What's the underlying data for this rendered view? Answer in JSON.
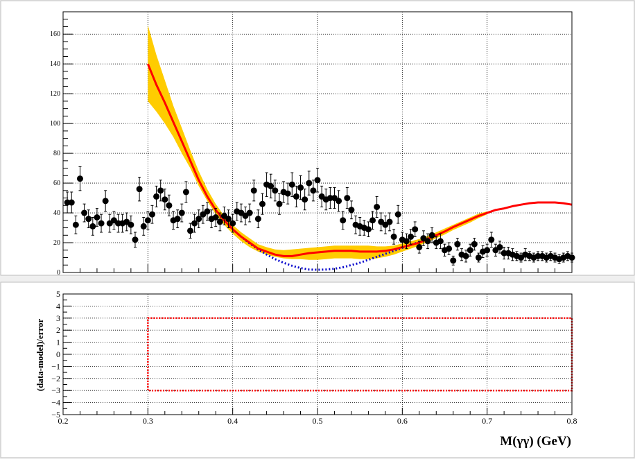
{
  "chart_data": [
    {
      "type": "scatter",
      "panel": "top",
      "xlim": [
        0.2,
        0.8
      ],
      "ylim": [
        0,
        175
      ],
      "grid": true,
      "x_ticks": [
        "0.2",
        "0.3",
        "0.4",
        "0.5",
        "0.6",
        "0.7",
        "0.8"
      ],
      "y_ticks": [
        {
          "v": 0,
          "label": "0"
        },
        {
          "v": 20,
          "label": "20"
        },
        {
          "v": 40,
          "label": "40"
        },
        {
          "v": 60,
          "label": "60"
        },
        {
          "v": 80,
          "label": "80"
        },
        {
          "v": 100,
          "label": "100"
        },
        {
          "v": 120,
          "label": "120"
        },
        {
          "v": 140,
          "label": "140"
        },
        {
          "v": 160,
          "label": "160"
        }
      ],
      "data_points": {
        "color": "#000000",
        "x": [
          0.205,
          0.21,
          0.215,
          0.22,
          0.225,
          0.23,
          0.235,
          0.24,
          0.245,
          0.25,
          0.255,
          0.26,
          0.265,
          0.27,
          0.275,
          0.28,
          0.285,
          0.29,
          0.295,
          0.3,
          0.305,
          0.31,
          0.315,
          0.32,
          0.325,
          0.33,
          0.335,
          0.34,
          0.345,
          0.35,
          0.355,
          0.36,
          0.365,
          0.37,
          0.375,
          0.38,
          0.385,
          0.39,
          0.395,
          0.4,
          0.405,
          0.41,
          0.415,
          0.42,
          0.425,
          0.43,
          0.435,
          0.44,
          0.445,
          0.45,
          0.455,
          0.46,
          0.465,
          0.47,
          0.475,
          0.48,
          0.485,
          0.49,
          0.495,
          0.5,
          0.505,
          0.51,
          0.515,
          0.52,
          0.525,
          0.53,
          0.535,
          0.54,
          0.545,
          0.55,
          0.555,
          0.56,
          0.565,
          0.57,
          0.575,
          0.58,
          0.585,
          0.59,
          0.595,
          0.6,
          0.605,
          0.61,
          0.615,
          0.62,
          0.625,
          0.63,
          0.635,
          0.64,
          0.645,
          0.65,
          0.655,
          0.66,
          0.665,
          0.67,
          0.675,
          0.68,
          0.685,
          0.69,
          0.695,
          0.7,
          0.705,
          0.71,
          0.715,
          0.72,
          0.725,
          0.73,
          0.735,
          0.74,
          0.745,
          0.75,
          0.755,
          0.76,
          0.765,
          0.77,
          0.775,
          0.78,
          0.785,
          0.79,
          0.795,
          0.8
        ],
        "y": [
          47,
          47,
          32,
          63,
          40,
          36,
          31,
          37,
          33,
          48,
          33,
          35,
          33,
          33,
          34,
          32,
          22,
          56,
          31,
          35,
          39,
          51,
          55,
          49,
          45,
          35,
          36,
          40,
          54,
          28,
          33,
          36,
          39,
          41,
          36,
          37,
          34,
          38,
          36,
          33,
          41,
          40,
          38,
          40,
          55,
          36,
          46,
          59,
          58,
          55,
          46,
          54,
          53,
          59,
          51,
          57,
          49,
          60,
          55,
          62,
          51,
          49,
          50,
          50,
          48,
          35,
          50,
          42,
          32,
          31,
          30,
          29,
          35,
          44,
          34,
          32,
          34,
          24,
          39,
          22,
          21,
          24,
          29,
          17,
          23,
          21,
          25,
          20,
          21,
          15,
          16,
          8,
          19,
          12,
          11,
          15,
          19,
          10,
          14,
          15,
          22,
          15,
          17,
          13,
          13,
          12,
          11,
          10,
          12,
          11,
          10,
          11,
          11,
          10,
          11,
          10,
          9,
          10,
          11,
          10
        ],
        "err": [
          7,
          7,
          6,
          8,
          6,
          6,
          6,
          6,
          6,
          7,
          6,
          6,
          6,
          6,
          6,
          6,
          5,
          8,
          6,
          6,
          6,
          7,
          7,
          7,
          7,
          6,
          6,
          6,
          7,
          5,
          6,
          6,
          6,
          6,
          6,
          6,
          6,
          6,
          6,
          6,
          6,
          6,
          6,
          6,
          7,
          6,
          7,
          8,
          8,
          7,
          7,
          7,
          7,
          8,
          7,
          8,
          7,
          8,
          7,
          8,
          7,
          7,
          7,
          7,
          7,
          6,
          7,
          6,
          6,
          6,
          5,
          5,
          6,
          7,
          6,
          6,
          6,
          5,
          6,
          5,
          5,
          5,
          5,
          4,
          5,
          5,
          5,
          4,
          5,
          4,
          4,
          3,
          4,
          4,
          4,
          4,
          4,
          3,
          4,
          4,
          5,
          4,
          4,
          4,
          4,
          4,
          3,
          3,
          4,
          3,
          3,
          3,
          3,
          3,
          3,
          3,
          3,
          3,
          3,
          3
        ]
      },
      "model_curve": {
        "color": "#ff0000",
        "x": [
          0.3,
          0.31,
          0.32,
          0.33,
          0.34,
          0.35,
          0.36,
          0.37,
          0.38,
          0.39,
          0.4,
          0.41,
          0.42,
          0.43,
          0.44,
          0.45,
          0.46,
          0.47,
          0.48,
          0.49,
          0.5,
          0.51,
          0.52,
          0.53,
          0.54,
          0.55,
          0.56,
          0.57,
          0.58,
          0.59,
          0.6,
          0.61,
          0.62,
          0.63,
          0.64,
          0.65,
          0.66,
          0.67,
          0.68,
          0.69,
          0.7,
          0.71,
          0.72,
          0.73,
          0.74,
          0.75,
          0.76,
          0.77,
          0.78,
          0.79,
          0.8
        ],
        "y": [
          140,
          126,
          114,
          101,
          88,
          75,
          62,
          51,
          42,
          35,
          29,
          24,
          20,
          16,
          14,
          12,
          11,
          11,
          12,
          13,
          13.5,
          14,
          14.5,
          14.5,
          14.5,
          14,
          14,
          14,
          14.5,
          15.5,
          17,
          18.5,
          20,
          22.5,
          25,
          27.5,
          30.5,
          33,
          35.5,
          38,
          40,
          42,
          43,
          44.5,
          45.5,
          46.5,
          47,
          47,
          47,
          46.5,
          45.5
        ]
      },
      "error_band": {
        "color": "#ffcc00",
        "x": [
          0.3,
          0.31,
          0.32,
          0.33,
          0.34,
          0.35,
          0.36,
          0.37,
          0.38,
          0.39,
          0.4,
          0.41,
          0.42,
          0.43,
          0.44,
          0.45,
          0.46,
          0.47,
          0.48,
          0.49,
          0.5,
          0.51,
          0.52,
          0.53,
          0.54,
          0.55,
          0.56,
          0.57,
          0.58,
          0.59,
          0.6,
          0.61,
          0.62,
          0.63,
          0.64,
          0.65,
          0.66,
          0.67,
          0.68,
          0.69,
          0.7
        ],
        "y_low": [
          115,
          108,
          100,
          91,
          80,
          70,
          58,
          48,
          39,
          32,
          26,
          21,
          17,
          14,
          12,
          10.5,
          9.5,
          9,
          9,
          8.5,
          8.5,
          9,
          9.5,
          9.5,
          9.5,
          9,
          9,
          9.5,
          10.5,
          12,
          14,
          16,
          18,
          20.5,
          23,
          25.5,
          28.5,
          31,
          33.5,
          36.5,
          39
        ],
        "y_high": [
          166,
          146,
          129,
          112,
          97,
          82,
          68,
          56,
          46,
          38,
          32,
          27,
          23,
          19,
          17,
          15.5,
          15,
          15.5,
          16,
          16.5,
          17,
          17.5,
          18,
          18,
          18,
          18,
          18,
          17.5,
          17.5,
          18,
          19.5,
          21,
          22.5,
          24.5,
          27,
          29.5,
          32,
          34.5,
          37,
          39.5,
          41
        ]
      },
      "background_curve": {
        "color": "#0000cc",
        "x": [
          0.4,
          0.41,
          0.42,
          0.43,
          0.44,
          0.45,
          0.46,
          0.47,
          0.48,
          0.49,
          0.5,
          0.51,
          0.52,
          0.53,
          0.54,
          0.55,
          0.56,
          0.57,
          0.58,
          0.59,
          0.6,
          0.61,
          0.62,
          0.63,
          0.64
        ],
        "y": [
          29,
          24,
          19.5,
          15.5,
          12,
          9,
          6.5,
          4.5,
          3,
          2,
          1.8,
          2,
          2.5,
          3.5,
          5,
          6.5,
          8.5,
          10.5,
          12.5,
          14.5,
          16.5,
          18.5,
          20.5,
          22.5,
          24.5
        ]
      }
    },
    {
      "type": "line",
      "panel": "bottom",
      "xlim": [
        0.2,
        0.8
      ],
      "ylim": [
        -5,
        5
      ],
      "grid": true,
      "ylabel": "(data-model)/error",
      "xlabel": "M(γγ) (GeV)",
      "x_ticks": [
        "0.2",
        "0.3",
        "0.4",
        "0.5",
        "0.6",
        "0.7",
        "0.8"
      ],
      "y_ticks": [
        "−5",
        "−4",
        "−3",
        "−2",
        "−1",
        "0",
        "1",
        "2",
        "3",
        "4",
        "5"
      ],
      "band": {
        "color": "#ff0000",
        "x": [
          0.3,
          0.8
        ],
        "y": [
          -3,
          3
        ]
      }
    }
  ]
}
